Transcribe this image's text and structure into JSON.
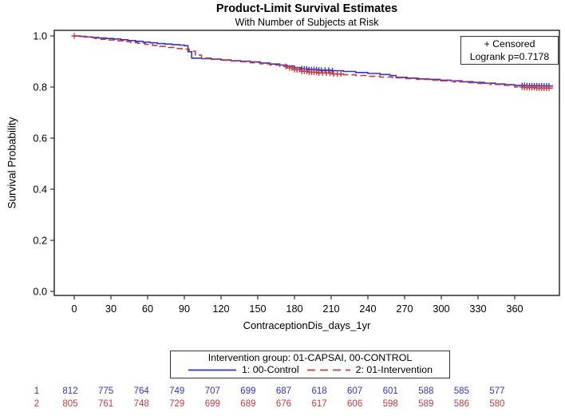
{
  "title": "Product-Limit Survival Estimates",
  "subtitle": "With Number of Subjects at Risk",
  "inner_legend": {
    "censored_label": "+ Censored",
    "logrank_label": "Logrank p=0.7178"
  },
  "axes": {
    "x_label": "ContraceptionDis_days_1yr",
    "y_label": "Survival Probability"
  },
  "legend": {
    "title": "Intervention group: 01-CAPSAI, 00-CONTROL",
    "entries": [
      {
        "label": "1: 00-Control",
        "color": "#3333c4",
        "style": "solid"
      },
      {
        "label": "2: 01-Intervention",
        "color": "#c23b42",
        "style": "dashed"
      }
    ]
  },
  "colors": {
    "control": "#3333c4",
    "intervention": "#c23b42",
    "frame": "#2e2e2e"
  },
  "chart_data": {
    "type": "line",
    "subtype": "kaplan-meier-step",
    "title": "Product-Limit Survival Estimates",
    "xlabel": "ContraceptionDis_days_1yr",
    "ylabel": "Survival Probability",
    "xticks": [
      0,
      30,
      60,
      90,
      120,
      150,
      180,
      210,
      240,
      270,
      300,
      330,
      360
    ],
    "yticks": [
      "0.0",
      "0.2",
      "0.4",
      "0.6",
      "0.8",
      "1.0"
    ],
    "ylim": [
      0,
      1.02
    ],
    "xlim": [
      -17,
      396
    ],
    "grid": false,
    "annotations": [
      "+ Censored",
      "Logrank p=0.7178"
    ],
    "series": [
      {
        "name": "1: 00-Control",
        "color": "#3333c4",
        "dash": "solid",
        "points": [
          [
            0,
            1.0
          ],
          [
            5,
            0.998
          ],
          [
            10,
            0.996
          ],
          [
            15,
            0.994
          ],
          [
            20,
            0.992
          ],
          [
            26,
            0.99
          ],
          [
            32,
            0.988
          ],
          [
            38,
            0.985
          ],
          [
            44,
            0.982
          ],
          [
            50,
            0.979
          ],
          [
            56,
            0.976
          ],
          [
            62,
            0.973
          ],
          [
            68,
            0.97
          ],
          [
            74,
            0.968
          ],
          [
            80,
            0.966
          ],
          [
            86,
            0.964
          ],
          [
            90,
            0.962
          ],
          [
            93,
            0.938
          ],
          [
            96,
            0.913
          ],
          [
            104,
            0.911
          ],
          [
            112,
            0.909
          ],
          [
            120,
            0.906
          ],
          [
            128,
            0.903
          ],
          [
            136,
            0.901
          ],
          [
            144,
            0.898
          ],
          [
            152,
            0.894
          ],
          [
            160,
            0.89
          ],
          [
            168,
            0.886
          ],
          [
            174,
            0.882
          ],
          [
            180,
            0.876
          ],
          [
            186,
            0.871
          ],
          [
            192,
            0.868
          ],
          [
            200,
            0.866
          ],
          [
            210,
            0.864
          ],
          [
            220,
            0.861
          ],
          [
            230,
            0.857
          ],
          [
            240,
            0.853
          ],
          [
            250,
            0.849
          ],
          [
            258,
            0.845
          ],
          [
            263,
            0.838
          ],
          [
            272,
            0.835
          ],
          [
            281,
            0.832
          ],
          [
            290,
            0.83
          ],
          [
            299,
            0.827
          ],
          [
            308,
            0.824
          ],
          [
            317,
            0.821
          ],
          [
            326,
            0.818
          ],
          [
            335,
            0.815
          ],
          [
            344,
            0.812
          ],
          [
            352,
            0.809
          ],
          [
            360,
            0.806
          ],
          [
            370,
            0.805
          ],
          [
            380,
            0.804
          ],
          [
            391,
            0.803
          ]
        ],
        "censored_days": [
          186,
          188,
          190,
          192,
          194,
          196,
          198,
          200,
          202,
          205,
          208,
          211,
          366,
          368,
          370,
          372,
          374,
          376,
          378,
          380,
          382,
          384,
          386,
          388
        ]
      },
      {
        "name": "2: 01-Intervention",
        "color": "#c23b42",
        "dash": "dashed",
        "points": [
          [
            0,
            1.0
          ],
          [
            4,
            0.998
          ],
          [
            8,
            0.996
          ],
          [
            12,
            0.993
          ],
          [
            17,
            0.99
          ],
          [
            22,
            0.987
          ],
          [
            28,
            0.984
          ],
          [
            34,
            0.981
          ],
          [
            40,
            0.978
          ],
          [
            46,
            0.974
          ],
          [
            52,
            0.971
          ],
          [
            58,
            0.967
          ],
          [
            64,
            0.963
          ],
          [
            70,
            0.959
          ],
          [
            76,
            0.955
          ],
          [
            82,
            0.951
          ],
          [
            88,
            0.948
          ],
          [
            94,
            0.94
          ],
          [
            99,
            0.925
          ],
          [
            104,
            0.913
          ],
          [
            112,
            0.909
          ],
          [
            120,
            0.905
          ],
          [
            128,
            0.902
          ],
          [
            136,
            0.899
          ],
          [
            144,
            0.895
          ],
          [
            152,
            0.891
          ],
          [
            160,
            0.886
          ],
          [
            168,
            0.881
          ],
          [
            174,
            0.875
          ],
          [
            180,
            0.868
          ],
          [
            186,
            0.862
          ],
          [
            192,
            0.858
          ],
          [
            200,
            0.855
          ],
          [
            210,
            0.851
          ],
          [
            220,
            0.848
          ],
          [
            230,
            0.845
          ],
          [
            240,
            0.842
          ],
          [
            250,
            0.839
          ],
          [
            260,
            0.836
          ],
          [
            270,
            0.833
          ],
          [
            280,
            0.83
          ],
          [
            290,
            0.827
          ],
          [
            300,
            0.824
          ],
          [
            310,
            0.82
          ],
          [
            320,
            0.817
          ],
          [
            330,
            0.814
          ],
          [
            340,
            0.81
          ],
          [
            350,
            0.807
          ],
          [
            360,
            0.8
          ],
          [
            368,
            0.798
          ],
          [
            378,
            0.796
          ],
          [
            391,
            0.795
          ]
        ],
        "censored_days": [
          0,
          173,
          176,
          178,
          180,
          182,
          184,
          186,
          188,
          190,
          192,
          194,
          196,
          198,
          200,
          203,
          206,
          209,
          212,
          215,
          218,
          366,
          368,
          370,
          372,
          374,
          376,
          378,
          380,
          382,
          384,
          386,
          388
        ]
      }
    ]
  },
  "at_risk": {
    "days": [
      0,
      30,
      60,
      90,
      120,
      150,
      180,
      210,
      240,
      270,
      300,
      330,
      360
    ],
    "rows": [
      {
        "label": "1",
        "color": "#3333c4",
        "values": [
          812,
          775,
          764,
          749,
          707,
          699,
          687,
          618,
          607,
          601,
          588,
          585,
          577
        ]
      },
      {
        "label": "2",
        "color": "#c23b42",
        "values": [
          805,
          761,
          748,
          729,
          699,
          689,
          676,
          617,
          606,
          598,
          589,
          586,
          580
        ]
      }
    ]
  }
}
